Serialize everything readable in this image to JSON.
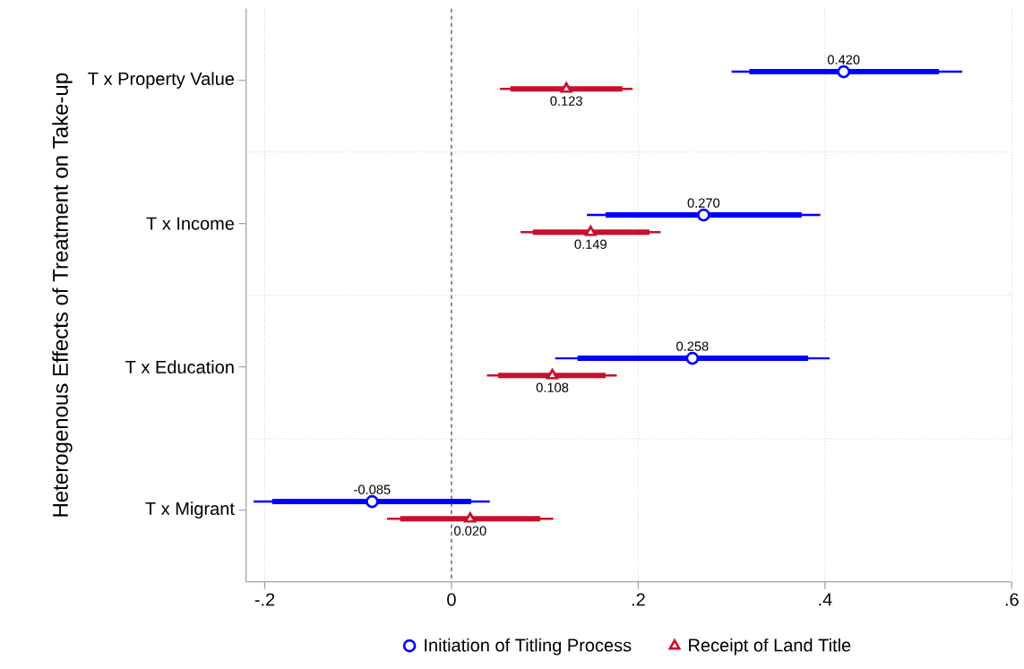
{
  "chart_data": {
    "type": "scatter",
    "orientation": "horizontal",
    "ylabel": "Heterogenous Effects of Treatment on Take-up",
    "categories": [
      "T x Property Value",
      "T x Income",
      "T x Education",
      "T x Migrant"
    ],
    "xlim": [
      -0.22,
      0.6
    ],
    "xticks": [
      {
        "value": -0.2,
        "label": "-.2"
      },
      0,
      {
        "value": 0.2,
        "label": ".2"
      },
      {
        "value": 0.4,
        "label": ".4"
      },
      {
        "value": 0.6,
        "label": ".6"
      }
    ],
    "grid": true,
    "legend": "bottom",
    "ref_lines": [
      {
        "axis": "x",
        "value": 0,
        "color": "#555555",
        "line_style": "dashed"
      }
    ],
    "series": [
      {
        "name": "Initiation of Titling Process",
        "color": "#0000ff",
        "marker": "circle",
        "values": [
          0.42,
          0.27,
          0.258,
          -0.085
        ],
        "errors": [
          [
            0.3,
            0.547
          ],
          [
            0.145,
            0.395
          ],
          [
            0.111,
            0.405
          ],
          [
            -0.212,
            0.041
          ]
        ],
        "value_labels": [
          "0.420",
          "0.270",
          "0.258",
          "-0.085"
        ]
      },
      {
        "type": "bar",
        "color": "#0000ff",
        "base": [
          0.319,
          0.165,
          0.135,
          -0.192
        ],
        "values": [
          0.203,
          0.21,
          0.247,
          0.213
        ]
      },
      {
        "name": "Receipt of Land Title",
        "color": "#c8102e",
        "marker": "triangle",
        "values": [
          0.123,
          0.149,
          0.108,
          0.02
        ],
        "errors": [
          [
            0.052,
            0.194
          ],
          [
            0.074,
            0.224
          ],
          [
            0.038,
            0.177
          ],
          [
            -0.069,
            0.109
          ]
        ],
        "value_labels": [
          "0.123",
          "0.149",
          "0.108",
          "0.020"
        ]
      },
      {
        "type": "bar",
        "color": "#c8102e",
        "base": [
          0.063,
          0.087,
          0.05,
          -0.055
        ],
        "values": [
          0.12,
          0.125,
          0.115,
          0.15
        ]
      }
    ]
  }
}
